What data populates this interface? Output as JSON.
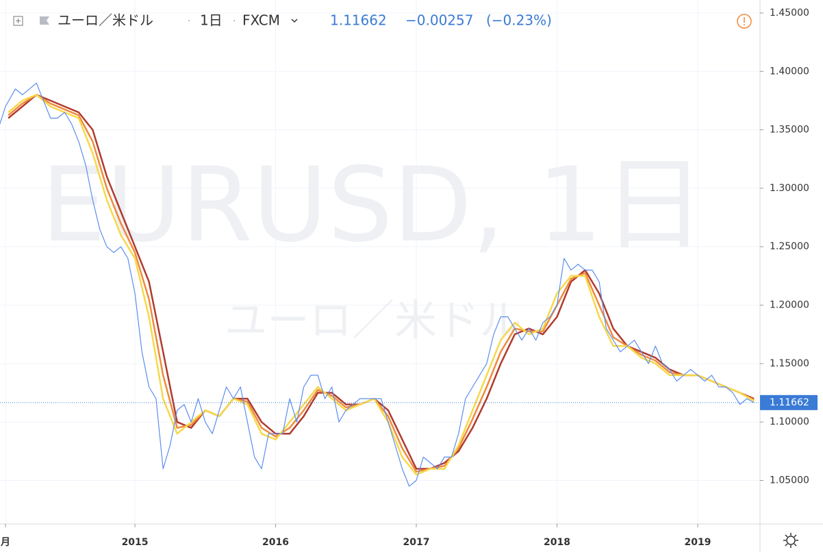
{
  "header": {
    "symbol": "ユーロ／米ドル",
    "interval": "1日",
    "source": "FXCM",
    "price": "1.11662",
    "change": "−0.00257",
    "change_pct": "(−0.23%)"
  },
  "chart_data": {
    "type": "line",
    "watermark": "EURUSD, 1日",
    "watermark_sub": "ユーロ／米ドル",
    "xlim": [
      2014.041,
      2019.443
    ],
    "ylim": [
      1.0128,
      1.4611
    ],
    "xticks": [
      {
        "value": 2014.08,
        "label": "月"
      },
      2015,
      2016,
      2017,
      2018,
      2019
    ],
    "yticks": [
      {
        "value": 1.05,
        "label": "1.05000"
      },
      {
        "value": 1.1,
        "label": "1.10000"
      },
      {
        "value": 1.15,
        "label": "1.15000"
      },
      {
        "value": 1.2,
        "label": "1.20000"
      },
      {
        "value": 1.25,
        "label": "1.25000"
      },
      {
        "value": 1.3,
        "label": "1.30000"
      },
      {
        "value": 1.35,
        "label": "1.35000"
      },
      {
        "value": 1.4,
        "label": "1.40000"
      },
      {
        "value": 1.45,
        "label": "1.45000"
      }
    ],
    "grid": true,
    "last": 1.11662,
    "last_label": "1.11662",
    "series": [
      {
        "color": "#b03a2e",
        "x": [
          2014.1,
          2014.2,
          2014.3,
          2014.4,
          2014.5,
          2014.6,
          2014.7,
          2014.8,
          2014.9,
          2015.0,
          2015.1,
          2015.2,
          2015.3,
          2015.4,
          2015.5,
          2015.6,
          2015.7,
          2015.8,
          2015.9,
          2016.0,
          2016.1,
          2016.2,
          2016.3,
          2016.4,
          2016.5,
          2016.6,
          2016.7,
          2016.8,
          2016.9,
          2017.0,
          2017.1,
          2017.2,
          2017.3,
          2017.4,
          2017.5,
          2017.6,
          2017.7,
          2017.8,
          2017.9,
          2018.0,
          2018.1,
          2018.2,
          2018.3,
          2018.4,
          2018.5,
          2018.6,
          2018.7,
          2018.8,
          2018.9,
          2019.0,
          2019.1,
          2019.2,
          2019.3,
          2019.4
        ],
        "values": [
          1.36,
          1.37,
          1.38,
          1.375,
          1.37,
          1.365,
          1.35,
          1.31,
          1.28,
          1.25,
          1.22,
          1.16,
          1.1,
          1.095,
          1.11,
          1.105,
          1.12,
          1.12,
          1.1,
          1.09,
          1.09,
          1.105,
          1.125,
          1.125,
          1.115,
          1.115,
          1.12,
          1.11,
          1.085,
          1.06,
          1.06,
          1.065,
          1.075,
          1.095,
          1.12,
          1.15,
          1.175,
          1.18,
          1.175,
          1.19,
          1.22,
          1.23,
          1.21,
          1.18,
          1.165,
          1.16,
          1.155,
          1.145,
          1.14,
          1.14,
          1.135,
          1.13,
          1.125,
          1.12
        ]
      },
      {
        "color": "#ef8a3c",
        "x": [
          2014.1,
          2014.2,
          2014.3,
          2014.4,
          2014.5,
          2014.6,
          2014.7,
          2014.8,
          2014.9,
          2015.0,
          2015.1,
          2015.2,
          2015.3,
          2015.4,
          2015.5,
          2015.6,
          2015.7,
          2015.8,
          2015.9,
          2016.0,
          2016.1,
          2016.2,
          2016.3,
          2016.4,
          2016.5,
          2016.6,
          2016.7,
          2016.8,
          2016.9,
          2017.0,
          2017.1,
          2017.2,
          2017.3,
          2017.4,
          2017.5,
          2017.6,
          2017.7,
          2017.8,
          2017.9,
          2018.0,
          2018.1,
          2018.2,
          2018.3,
          2018.4,
          2018.5,
          2018.6,
          2018.7,
          2018.8,
          2018.9,
          2019.0,
          2019.1,
          2019.2,
          2019.3,
          2019.4
        ],
        "values": [
          1.3625,
          1.3725,
          1.38,
          1.3725,
          1.3675,
          1.3625,
          1.34,
          1.3,
          1.27,
          1.245,
          1.205,
          1.14,
          1.095,
          1.0975,
          1.11,
          1.105,
          1.12,
          1.1175,
          1.095,
          1.0875,
          1.095,
          1.11,
          1.1275,
          1.1225,
          1.1125,
          1.115,
          1.12,
          1.105,
          1.0775,
          1.0575,
          1.06,
          1.0625,
          1.0775,
          1.1025,
          1.13,
          1.16,
          1.18,
          1.1775,
          1.1775,
          1.2,
          1.2225,
          1.2275,
          1.2,
          1.1725,
          1.165,
          1.1575,
          1.1525,
          1.1425,
          1.14,
          1.14,
          1.135,
          1.13,
          1.125,
          1.119
        ]
      },
      {
        "color": "#f6d84a",
        "x": [
          2014.1,
          2014.2,
          2014.3,
          2014.4,
          2014.5,
          2014.6,
          2014.7,
          2014.8,
          2014.9,
          2015.0,
          2015.1,
          2015.2,
          2015.3,
          2015.4,
          2015.5,
          2015.6,
          2015.7,
          2015.8,
          2015.9,
          2016.0,
          2016.1,
          2016.2,
          2016.3,
          2016.4,
          2016.5,
          2016.6,
          2016.7,
          2016.8,
          2016.9,
          2017.0,
          2017.1,
          2017.2,
          2017.3,
          2017.4,
          2017.5,
          2017.6,
          2017.7,
          2017.8,
          2017.9,
          2018.0,
          2018.1,
          2018.2,
          2018.3,
          2018.4,
          2018.5,
          2018.6,
          2018.7,
          2018.8,
          2018.9,
          2019.0,
          2019.1,
          2019.2,
          2019.3,
          2019.4
        ],
        "values": [
          1.365,
          1.375,
          1.38,
          1.37,
          1.365,
          1.36,
          1.33,
          1.29,
          1.26,
          1.24,
          1.19,
          1.12,
          1.09,
          1.1,
          1.11,
          1.105,
          1.12,
          1.115,
          1.09,
          1.085,
          1.1,
          1.115,
          1.13,
          1.12,
          1.11,
          1.115,
          1.12,
          1.1,
          1.07,
          1.055,
          1.06,
          1.06,
          1.08,
          1.11,
          1.14,
          1.17,
          1.185,
          1.175,
          1.18,
          1.21,
          1.225,
          1.225,
          1.19,
          1.165,
          1.165,
          1.155,
          1.15,
          1.14,
          1.14,
          1.14,
          1.135,
          1.13,
          1.125,
          1.118
        ]
      },
      {
        "color": "#5b8def",
        "x": [
          2014.04,
          2014.08,
          2014.15,
          2014.2,
          2014.25,
          2014.3,
          2014.35,
          2014.4,
          2014.45,
          2014.5,
          2014.55,
          2014.6,
          2014.65,
          2014.7,
          2014.75,
          2014.8,
          2014.85,
          2014.9,
          2014.95,
          2015.0,
          2015.05,
          2015.1,
          2015.15,
          2015.2,
          2015.25,
          2015.3,
          2015.35,
          2015.4,
          2015.45,
          2015.5,
          2015.55,
          2015.6,
          2015.65,
          2015.7,
          2015.75,
          2015.8,
          2015.85,
          2015.9,
          2015.95,
          2016.0,
          2016.05,
          2016.1,
          2016.15,
          2016.2,
          2016.25,
          2016.3,
          2016.35,
          2016.4,
          2016.45,
          2016.5,
          2016.55,
          2016.6,
          2016.65,
          2016.7,
          2016.75,
          2016.8,
          2016.85,
          2016.9,
          2016.95,
          2017.0,
          2017.05,
          2017.1,
          2017.15,
          2017.2,
          2017.25,
          2017.3,
          2017.35,
          2017.4,
          2017.45,
          2017.5,
          2017.55,
          2017.6,
          2017.65,
          2017.7,
          2017.75,
          2017.8,
          2017.85,
          2017.9,
          2017.95,
          2018.0,
          2018.05,
          2018.1,
          2018.15,
          2018.2,
          2018.25,
          2018.3,
          2018.35,
          2018.4,
          2018.45,
          2018.5,
          2018.55,
          2018.6,
          2018.65,
          2018.7,
          2018.75,
          2018.8,
          2018.85,
          2018.9,
          2018.95,
          2019.0,
          2019.05,
          2019.1,
          2019.15,
          2019.2,
          2019.25,
          2019.3,
          2019.35,
          2019.4
        ],
        "values": [
          1.355,
          1.37,
          1.385,
          1.38,
          1.385,
          1.39,
          1.375,
          1.36,
          1.36,
          1.365,
          1.355,
          1.34,
          1.32,
          1.29,
          1.265,
          1.25,
          1.245,
          1.25,
          1.24,
          1.21,
          1.16,
          1.13,
          1.12,
          1.06,
          1.08,
          1.11,
          1.115,
          1.1,
          1.12,
          1.1,
          1.09,
          1.11,
          1.13,
          1.12,
          1.13,
          1.1,
          1.07,
          1.06,
          1.09,
          1.09,
          1.09,
          1.12,
          1.1,
          1.13,
          1.14,
          1.14,
          1.12,
          1.13,
          1.1,
          1.11,
          1.115,
          1.12,
          1.12,
          1.12,
          1.12,
          1.1,
          1.08,
          1.06,
          1.045,
          1.05,
          1.07,
          1.065,
          1.06,
          1.07,
          1.07,
          1.09,
          1.12,
          1.13,
          1.14,
          1.15,
          1.175,
          1.19,
          1.19,
          1.18,
          1.17,
          1.18,
          1.17,
          1.185,
          1.19,
          1.2,
          1.24,
          1.23,
          1.235,
          1.23,
          1.23,
          1.22,
          1.18,
          1.17,
          1.16,
          1.165,
          1.17,
          1.16,
          1.15,
          1.165,
          1.15,
          1.145,
          1.135,
          1.14,
          1.145,
          1.14,
          1.135,
          1.14,
          1.13,
          1.13,
          1.125,
          1.115,
          1.12,
          1.1166
        ]
      }
    ]
  }
}
